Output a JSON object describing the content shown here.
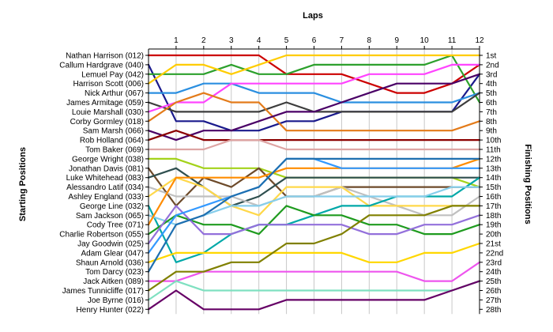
{
  "chart_data": {
    "type": "line",
    "title": "",
    "xlabel": "Laps",
    "ylabel_left": "Starting Positions",
    "ylabel_right": "Finishing Positions",
    "laps": [
      "1",
      "2",
      "3",
      "4",
      "5",
      "6",
      "7",
      "8",
      "9",
      "10",
      "11",
      "12"
    ],
    "positions": 28,
    "grid": "vertical",
    "drivers": [
      "Nathan Harrison (012)",
      "Callum Hardgrave (040)",
      "Lemuel Pay (042)",
      "Harrison Scott (006)",
      "Nick Arthur (067)",
      "James Armitage (059)",
      "Louie Marshall (030)",
      "Corby Gormley (018)",
      "Sam Marsh (066)",
      "Rob Holland (064)",
      "Tom Baker (069)",
      "George Wright (038)",
      "Jonathan Davis (081)",
      "Luke Whitehead (083)",
      "Alessandro Latif (034)",
      "Ashley England (033)",
      "George Line (032)",
      "Sam Jackson (065)",
      "Cody Tree (071)",
      "Charlie Robertson (055)",
      "Jay Goodwin (025)",
      "Adam Glear (047)",
      "Shaun Arnold (036)",
      "Tom Darcy (023)",
      "Jack Aitken (089)",
      "James Tunnicliffe (017)",
      "Joe Byrne (016)",
      "Henry Hunter (022)"
    ],
    "finishing_labels": [
      "1st",
      "2nd",
      "3rd",
      "4th",
      "5th",
      "6th",
      "7th",
      "8th",
      "9th",
      "10th",
      "11th",
      "12th",
      "13th",
      "14th",
      "15th",
      "16th",
      "17th",
      "18th",
      "19th",
      "20th",
      "21st",
      "22nd",
      "23rd",
      "24th",
      "25th",
      "26th",
      "27th",
      "28th"
    ],
    "series": [
      {
        "color": "#cc0000",
        "positions": [
          1,
          1,
          1,
          1,
          1,
          3,
          3,
          3,
          4,
          5,
          5,
          4,
          2
        ]
      },
      {
        "color": "#1a1a8c",
        "positions": [
          2,
          8,
          8,
          9,
          9,
          8,
          8,
          7,
          7,
          7,
          7,
          7,
          3
        ]
      },
      {
        "color": "#2ca02c",
        "positions": [
          3,
          3,
          3,
          2,
          3,
          3,
          2,
          2,
          2,
          2,
          2,
          1,
          6
        ]
      },
      {
        "color": "#ffcc00",
        "positions": [
          4,
          2,
          2,
          3,
          2,
          1,
          1,
          1,
          1,
          1,
          1,
          1,
          1
        ]
      },
      {
        "color": "#2b8fe0",
        "positions": [
          5,
          5,
          4,
          4,
          5,
          5,
          5,
          6,
          6,
          6,
          6,
          6,
          5
        ]
      },
      {
        "color": "#3d3d3d",
        "positions": [
          6,
          7,
          7,
          7,
          7,
          6,
          7,
          7,
          7,
          7,
          7,
          7,
          5
        ]
      },
      {
        "color": "#ff44ff",
        "positions": [
          7,
          6,
          6,
          4,
          4,
          4,
          4,
          4,
          3,
          3,
          3,
          2,
          2
        ]
      },
      {
        "color": "#e37b1a",
        "positions": [
          8,
          6,
          5,
          6,
          6,
          9,
          9,
          9,
          9,
          9,
          9,
          9,
          8
        ]
      },
      {
        "color": "#4a0066",
        "positions": [
          9,
          10,
          9,
          9,
          8,
          7,
          7,
          6,
          5,
          4,
          4,
          4,
          3
        ]
      },
      {
        "color": "#8b0000",
        "positions": [
          10,
          9,
          10,
          10,
          10,
          10,
          10,
          10,
          10,
          10,
          10,
          10,
          10
        ]
      },
      {
        "color": "#dea5a4",
        "positions": [
          11,
          11,
          11,
          10,
          10,
          11,
          11,
          11,
          11,
          11,
          11,
          11,
          11
        ]
      },
      {
        "color": "#a3d21a",
        "positions": [
          12,
          12,
          13,
          13,
          13,
          14,
          14,
          14,
          14,
          14,
          14,
          14,
          15
        ]
      },
      {
        "color": "#6d4a2a",
        "positions": [
          13,
          17,
          14,
          15,
          13,
          16,
          16,
          15,
          15,
          15,
          15,
          15,
          15
        ]
      },
      {
        "color": "#2f4f4f",
        "positions": [
          14,
          13,
          15,
          17,
          16,
          14,
          14,
          14,
          14,
          14,
          14,
          14,
          14
        ]
      },
      {
        "color": "#c0c0c0",
        "positions": [
          15,
          16,
          16,
          16,
          17,
          16,
          16,
          15,
          16,
          17,
          18,
          18,
          16
        ]
      },
      {
        "color": "#ffd84a",
        "positions": [
          16,
          14,
          15,
          17,
          18,
          15,
          15,
          15,
          17,
          17,
          17,
          17,
          17
        ]
      },
      {
        "color": "#00a8a8",
        "positions": [
          17,
          23,
          22,
          20,
          19,
          19,
          18,
          17,
          17,
          16,
          16,
          16,
          14
        ]
      },
      {
        "color": "#87ceeb",
        "positions": [
          18,
          19,
          18,
          17,
          17,
          16,
          16,
          16,
          16,
          16,
          16,
          15,
          15
        ]
      },
      {
        "color": "#ff8c00",
        "positions": [
          19,
          14,
          14,
          14,
          14,
          13,
          13,
          13,
          13,
          13,
          13,
          13,
          12
        ]
      },
      {
        "color": "#1f9b1f",
        "positions": [
          20,
          18,
          19,
          19,
          20,
          17,
          18,
          18,
          19,
          19,
          20,
          20,
          19
        ]
      },
      {
        "color": "#9370db",
        "positions": [
          21,
          17,
          20,
          20,
          19,
          19,
          19,
          19,
          20,
          20,
          19,
          19,
          18
        ]
      },
      {
        "color": "#3399ff",
        "positions": [
          22,
          18,
          17,
          16,
          15,
          12,
          12,
          13,
          13,
          13,
          13,
          13,
          13
        ]
      },
      {
        "color": "#ffd700",
        "positions": [
          23,
          22,
          22,
          22,
          22,
          22,
          22,
          22,
          23,
          23,
          22,
          22,
          21
        ]
      },
      {
        "color": "#1e6fb0",
        "positions": [
          24,
          19,
          18,
          16,
          15,
          12,
          12,
          12,
          12,
          12,
          12,
          12,
          12
        ]
      },
      {
        "color": "#ee55ee",
        "positions": [
          25,
          25,
          24,
          24,
          24,
          24,
          24,
          24,
          24,
          24,
          25,
          25,
          23
        ]
      },
      {
        "color": "#808000",
        "positions": [
          26,
          24,
          24,
          23,
          23,
          21,
          21,
          20,
          18,
          18,
          18,
          17,
          17
        ]
      },
      {
        "color": "#7fe0c0",
        "positions": [
          27,
          25,
          26,
          26,
          26,
          26,
          26,
          26,
          26,
          26,
          26,
          26,
          25
        ]
      },
      {
        "color": "#660066",
        "positions": [
          28,
          26,
          28,
          28,
          28,
          27,
          27,
          27,
          27,
          27,
          27,
          26,
          25
        ]
      }
    ]
  }
}
